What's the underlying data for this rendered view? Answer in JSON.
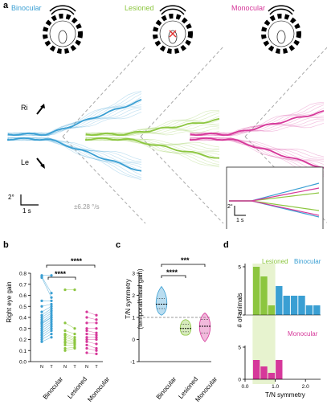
{
  "figure": {
    "panel_a": {
      "letter": "a",
      "conditions": [
        {
          "name": "Binocular",
          "color": "#3a9fd3"
        },
        {
          "name": "Lesioned",
          "color": "#8cc63f"
        },
        {
          "name": "Monocular",
          "color": "#d6389a"
        }
      ],
      "ri_label": "Ri",
      "le_label": "Le",
      "scale_y": "2°",
      "scale_x": "1 s",
      "velocity": "±6.28 °/s",
      "inset_scale_y": "2°",
      "inset_scale_x": "1 s"
    },
    "panel_b": {
      "letter": "b",
      "ylabel": "Right eye gain",
      "yticks": [
        "0.0",
        "0.1",
        "0.2",
        "0.3",
        "0.4",
        "0.5",
        "0.6",
        "0.7",
        "0.8"
      ],
      "categories": [
        "Binocular",
        "Lesioned",
        "Monocular"
      ],
      "pair_labels": [
        "N",
        "T"
      ],
      "sig1": "****",
      "sig2": "****"
    },
    "panel_c": {
      "letter": "c",
      "ylabel1": "T/N symmetry",
      "ylabel2": "(temporal/nasal gain)",
      "yticks": [
        "-1",
        "0",
        "1",
        "2",
        "3"
      ],
      "categories": [
        "Binocular",
        "Lesioned",
        "Monocular"
      ],
      "sig1": "***",
      "sig2": "****",
      "sig3": "****"
    },
    "panel_d": {
      "letter": "d",
      "ylabel": "# of animals",
      "xlabel": "T/N symmetry",
      "xticks": [
        "0.0",
        "1.0",
        "2.0"
      ],
      "yticks_top": [
        "0",
        "5"
      ],
      "yticks_bottom": [
        "0",
        "5"
      ],
      "legend_lesioned": "Lesioned",
      "legend_binocular": "Binocular",
      "legend_monocular": "Monocular"
    }
  },
  "chart_data": [
    {
      "type": "scatter",
      "panel": "b",
      "ylabel": "Right eye gain",
      "ylim": [
        0,
        0.8
      ],
      "categories": [
        "Binocular",
        "Lesioned",
        "Monocular"
      ],
      "series": [
        {
          "name": "Binocular",
          "color": "#3a9fd3",
          "N": [
            0.78,
            0.77,
            0.76,
            0.55,
            0.5,
            0.45,
            0.42,
            0.4,
            0.38,
            0.36,
            0.35,
            0.34,
            0.32,
            0.3,
            0.28,
            0.26,
            0.24,
            0.22,
            0.2,
            0.18
          ],
          "T": [
            0.78,
            0.62,
            0.58,
            0.55,
            0.52,
            0.5,
            0.48,
            0.46,
            0.44,
            0.42,
            0.4,
            0.4,
            0.38,
            0.36,
            0.34,
            0.32,
            0.3,
            0.28,
            0.25,
            0.22
          ]
        },
        {
          "name": "Lesioned",
          "color": "#8cc63f",
          "N": [
            0.65,
            0.35,
            0.28,
            0.25,
            0.24,
            0.22,
            0.2,
            0.18,
            0.17,
            0.15,
            0.12,
            0.1
          ],
          "T": [
            0.65,
            0.3,
            0.25,
            0.22,
            0.2,
            0.19,
            0.18,
            0.17,
            0.16,
            0.15,
            0.13,
            0.12
          ]
        },
        {
          "name": "Monocular",
          "color": "#d6389a",
          "N": [
            0.45,
            0.4,
            0.35,
            0.3,
            0.28,
            0.25,
            0.22,
            0.2,
            0.18,
            0.15,
            0.12,
            0.08
          ],
          "T": [
            0.42,
            0.38,
            0.35,
            0.3,
            0.26,
            0.24,
            0.22,
            0.2,
            0.16,
            0.12,
            0.1,
            0.07
          ]
        }
      ]
    },
    {
      "type": "violin",
      "panel": "c",
      "ylim": [
        -1,
        3
      ],
      "categories": [
        "Binocular",
        "Lesioned",
        "Monocular"
      ],
      "reference_line": 1,
      "series": [
        {
          "name": "Binocular",
          "color": "#3a9fd3",
          "median": 1.6,
          "q1": 1.4,
          "q3": 1.85,
          "min": 1.1,
          "max": 2.4
        },
        {
          "name": "Lesioned",
          "color": "#8cc63f",
          "median": 0.5,
          "q1": 0.35,
          "q3": 0.7,
          "min": 0.2,
          "max": 0.9
        },
        {
          "name": "Monocular",
          "color": "#d6389a",
          "median": 0.6,
          "q1": 0.3,
          "q3": 0.9,
          "min": -0.1,
          "max": 1.2
        }
      ]
    },
    {
      "type": "bar",
      "panel": "d",
      "xlabel": "T/N symmetry",
      "ylabel": "# of animals",
      "xlim": [
        0,
        2.5
      ],
      "bin_width": 0.25,
      "series": [
        {
          "name": "Lesioned",
          "color": "#8cc63f",
          "subplot": "top",
          "bins": [
            0.25,
            0.5,
            0.75
          ],
          "values": [
            5,
            4,
            1
          ]
        },
        {
          "name": "Binocular",
          "color": "#3a9fd3",
          "subplot": "top",
          "bins": [
            1.0,
            1.25,
            1.5,
            1.75,
            2.0,
            2.25
          ],
          "values": [
            3,
            2,
            2,
            2,
            1,
            1
          ]
        },
        {
          "name": "Monocular",
          "color": "#d6389a",
          "subplot": "bottom",
          "bins": [
            0.25,
            0.5,
            0.75,
            1.0
          ],
          "values": [
            3,
            2,
            1,
            3
          ]
        }
      ],
      "shaded_region": [
        0.25,
        1.0
      ]
    }
  ]
}
